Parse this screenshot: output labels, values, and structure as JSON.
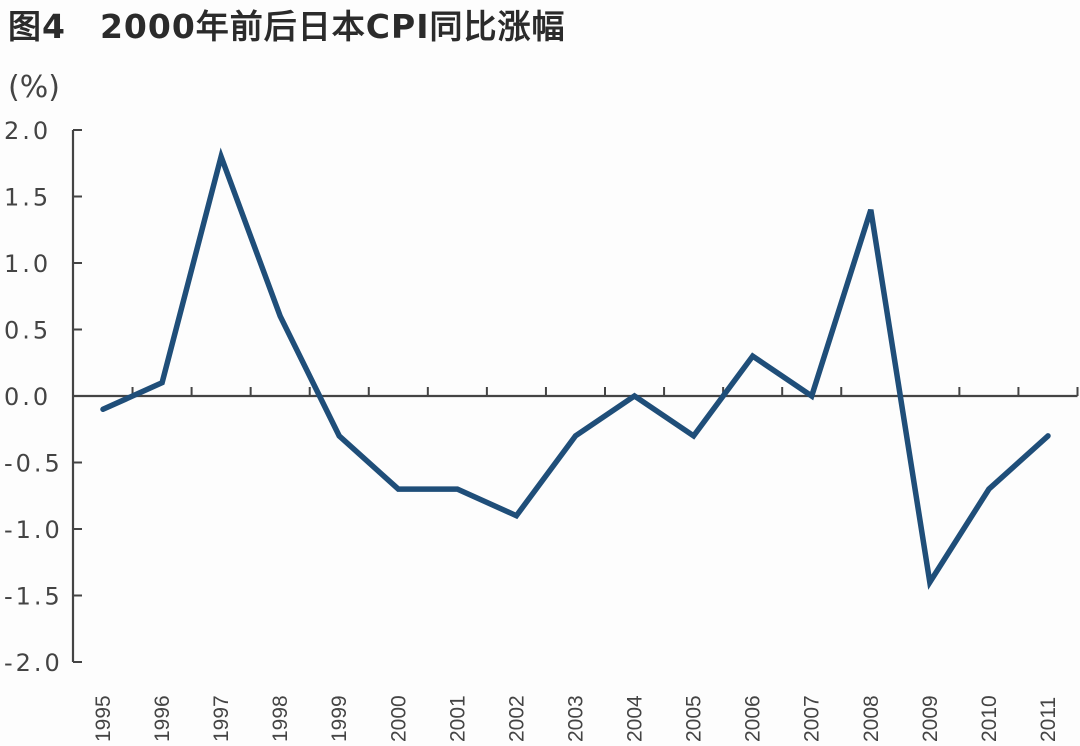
{
  "title": "图4　2000年前后日本CPI同比涨幅",
  "unit_label": "(%)",
  "colors": {
    "line": "#1f4e79",
    "axis": "#444444",
    "text": "#333333"
  },
  "chart_data": {
    "type": "line",
    "title": "图4　2000年前后日本CPI同比涨幅",
    "xlabel": "",
    "ylabel": "(%)",
    "ylim": [
      -2.0,
      2.0
    ],
    "yticks": [
      "2.0",
      "1.5",
      "1.0",
      "0.5",
      "0.0",
      "-0.5",
      "-1.0",
      "-1.5",
      "-2.0"
    ],
    "grid": false,
    "legend": null,
    "categories": [
      "1995",
      "1996",
      "1997",
      "1998",
      "1999",
      "2000",
      "2001",
      "2002",
      "2003",
      "2004",
      "2005",
      "2006",
      "2007",
      "2008",
      "2009",
      "2010",
      "2011"
    ],
    "series": [
      {
        "name": "日本CPI同比涨幅",
        "values": [
          -0.1,
          0.1,
          1.8,
          0.6,
          -0.3,
          -0.7,
          -0.7,
          -0.9,
          -0.3,
          0.0,
          -0.3,
          0.3,
          0.0,
          1.4,
          -1.4,
          -0.7,
          -0.3
        ]
      }
    ]
  }
}
